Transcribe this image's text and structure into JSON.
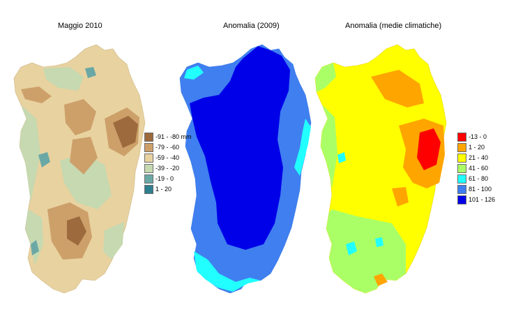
{
  "panels": [
    {
      "id": "maggio",
      "title": "Maggio 2010",
      "base_color": "#e8d2a0",
      "legend": [
        {
          "label": "-91 - -80 mm",
          "color": "#9c6a3c"
        },
        {
          "label": "-79 - -60",
          "color": "#cda06a"
        },
        {
          "label": "-59 - -40",
          "color": "#e8d2a0"
        },
        {
          "label": "-39 - -20",
          "color": "#c6d9b0"
        },
        {
          "label": "-19 - 0",
          "color": "#6aa8a6"
        },
        {
          "label": "1 - 20",
          "color": "#2f7f8e"
        }
      ]
    },
    {
      "id": "anomalia-2009",
      "title": "Anomalia (2009)",
      "base_color": "#3f7ff0",
      "legend": []
    },
    {
      "id": "anomalia-medie",
      "title": "Anomalia (medie climatiche)",
      "base_color": "#ffff00",
      "legend": [
        {
          "label": "-13 - 0",
          "color": "#ff0000"
        },
        {
          "label": "1 - 20",
          "color": "#ffa500"
        },
        {
          "label": "21 - 40",
          "color": "#ffff00"
        },
        {
          "label": "41 - 60",
          "color": "#aaff66"
        },
        {
          "label": "61 - 80",
          "color": "#22ffff"
        },
        {
          "label": "81 - 100",
          "color": "#3f7ff0"
        },
        {
          "label": "101 - 126",
          "color": "#0000e8"
        }
      ]
    }
  ]
}
